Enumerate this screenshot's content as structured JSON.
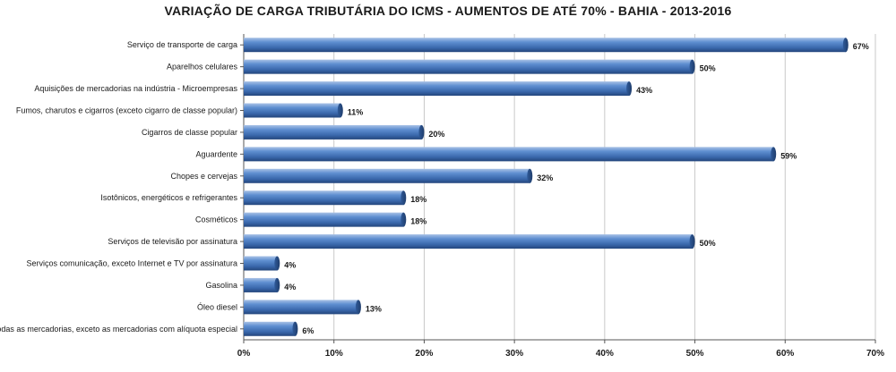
{
  "chart_data": {
    "type": "bar",
    "orientation": "horizontal",
    "title": "VARIAÇÃO DE CARGA TRIBUTÁRIA DO ICMS - AUMENTOS DE ATÉ 70% - BAHIA - 2013-2016",
    "categories": [
      "Serviço de transporte de carga",
      "Aparelhos celulares",
      "Aquisições de mercadorias na indústria - Microempresas",
      "Fumos, charutos e cigarros (exceto cigarro de classe popular)",
      "Cigarros de classe popular",
      "Aguardente",
      "Chopes e cervejas",
      "Isotônicos, energéticos e refrigerantes",
      "Cosméticos",
      "Serviços de televisão por assinatura",
      "Serviços comunicação, exceto Internet e TV por assinatura",
      "Gasolina",
      "Óleo diesel",
      "Todas as mercadorias, exceto as mercadorias com alíquota especial"
    ],
    "values": [
      67,
      50,
      43,
      11,
      20,
      59,
      32,
      18,
      18,
      50,
      4,
      4,
      13,
      6
    ],
    "value_labels": [
      "67%",
      "50%",
      "43%",
      "11%",
      "20%",
      "59%",
      "32%",
      "18%",
      "18%",
      "50%",
      "4%",
      "4%",
      "13%",
      "6%"
    ],
    "xlim": [
      0,
      70
    ],
    "x_ticks": [
      0,
      10,
      20,
      30,
      40,
      50,
      60,
      70
    ],
    "x_tick_labels": [
      "0%",
      "10%",
      "20%",
      "30%",
      "40%",
      "50%",
      "60%",
      "70%"
    ],
    "grid": true,
    "bar_color": "#3f6fb5"
  }
}
